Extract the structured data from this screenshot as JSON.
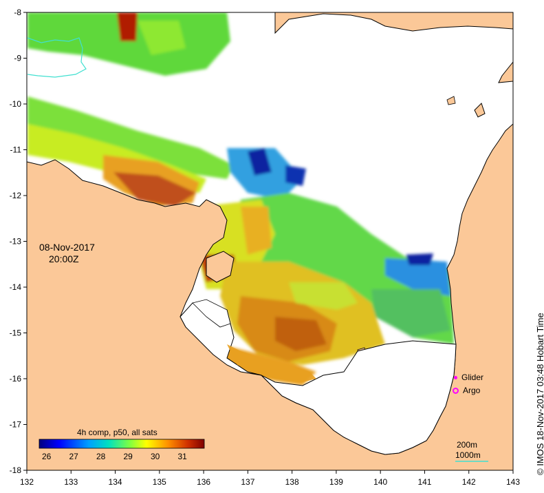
{
  "axes": {
    "lon_ticks": [
      "132",
      "133",
      "134",
      "135",
      "136",
      "137",
      "138",
      "139",
      "140",
      "141",
      "142",
      "143"
    ],
    "lat_ticks": [
      "-8",
      "-9",
      "-10",
      "-11",
      "-12",
      "-13",
      "-14",
      "-15",
      "-16",
      "-17",
      "-18"
    ]
  },
  "date": {
    "line1": "08-Nov-2017",
    "line2": "20:00Z"
  },
  "credit": "© IMOS 18-Nov-2017 03:48 Hobart Time",
  "legend": {
    "glider_label": "Glider",
    "argo_label": "Argo",
    "glider_color": "#ff00ff",
    "argo_color": "#ff00ff"
  },
  "colorbar": {
    "title": "4h comp, p50, all sats",
    "ticks": [
      "26",
      "27",
      "28",
      "29",
      "30",
      "31"
    ],
    "colors": [
      "#00007f",
      "#0000ff",
      "#007fff",
      "#00ffff",
      "#7fff7f",
      "#ffff00",
      "#ff7f00",
      "#ff0000",
      "#7f0000"
    ]
  },
  "scale": {
    "depth1": "200m",
    "depth2": "1000m",
    "line_color": "#40e0d0"
  },
  "colors": {
    "land": "#fbc898",
    "ocean_nodata": "#ffffff",
    "coast": "#000000"
  }
}
